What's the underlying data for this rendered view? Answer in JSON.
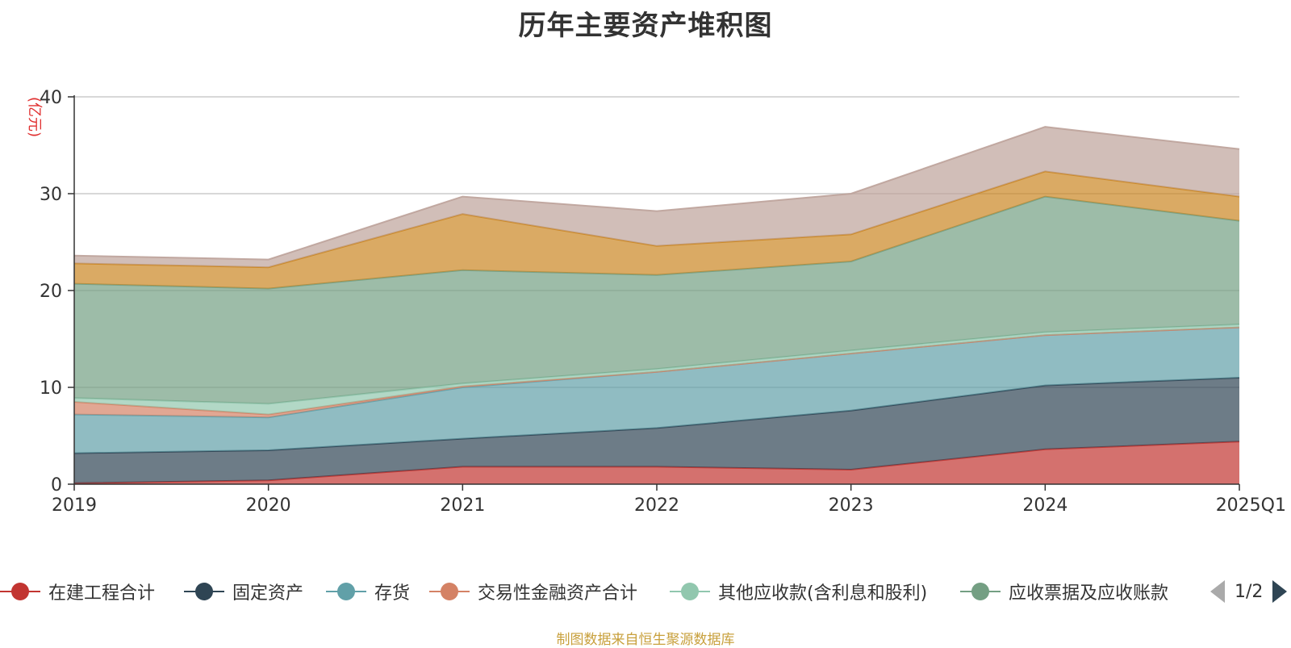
{
  "title": "历年主要资产堆积图",
  "source": "制图数据来自恒生聚源数据库",
  "pager": {
    "text": "1/2"
  },
  "colors": {
    "grid": "#cccccc",
    "axis": "#333333",
    "unit": "#e03030"
  },
  "chart_data": {
    "type": "area",
    "stacked": true,
    "ylabel": "(亿元)",
    "ylim": [
      0,
      40
    ],
    "yticks": [
      0,
      10,
      20,
      30,
      40
    ],
    "grid": true,
    "legend_position": "bottom",
    "categories": [
      "2019",
      "2020",
      "2021",
      "2022",
      "2023",
      "2024",
      "2025Q1"
    ],
    "series": [
      {
        "name": "在建工程合计",
        "color": "#c23531",
        "values": [
          0.1,
          0.4,
          1.8,
          1.8,
          1.5,
          3.6,
          4.4
        ]
      },
      {
        "name": "固定资产",
        "color": "#2f4554",
        "values": [
          3.1,
          3.1,
          2.9,
          4.0,
          6.1,
          6.6,
          6.6
        ]
      },
      {
        "name": "存货",
        "color": "#61a0a8",
        "values": [
          4.0,
          3.4,
          5.3,
          5.8,
          5.9,
          5.2,
          5.2
        ]
      },
      {
        "name": "交易性金融资产合计",
        "color": "#d48265",
        "values": [
          1.3,
          0.3,
          0.1,
          0.0,
          0.0,
          0.0,
          0.0
        ]
      },
      {
        "name": "其他应收款(含利息和股利)",
        "color": "#91c7ae",
        "values": [
          0.4,
          1.1,
          0.3,
          0.3,
          0.3,
          0.3,
          0.3
        ]
      },
      {
        "name": "应收票据及应收账款",
        "color": "#749f83",
        "values": [
          11.8,
          11.9,
          11.7,
          9.7,
          9.2,
          14.0,
          10.7
        ]
      },
      {
        "name": "",
        "color": "#ca8622",
        "values": [
          2.1,
          2.2,
          5.8,
          3.0,
          2.8,
          2.6,
          2.5
        ]
      },
      {
        "name": "",
        "color": "#bda29a",
        "values": [
          0.8,
          0.8,
          1.8,
          3.6,
          4.2,
          4.6,
          4.9
        ]
      }
    ]
  }
}
